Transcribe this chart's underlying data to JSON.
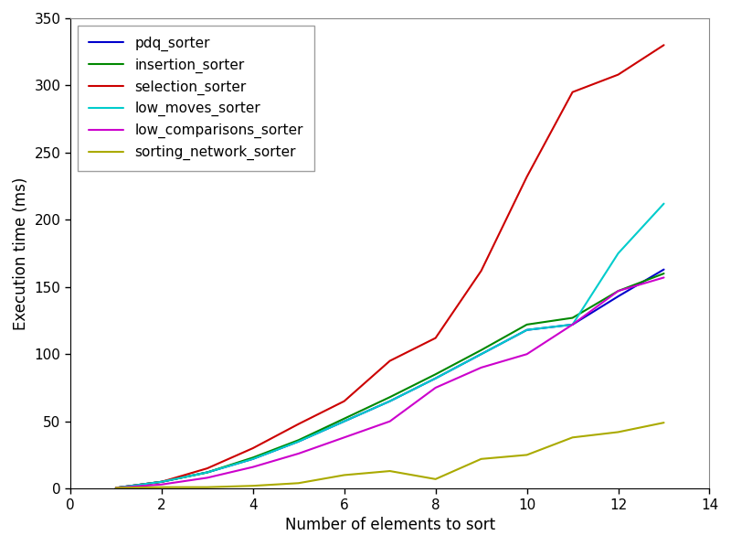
{
  "title": "",
  "xlabel": "Number of elements to sort",
  "ylabel": "Execution time (ms)",
  "xlim": [
    0,
    14
  ],
  "ylim": [
    0,
    350
  ],
  "xticks": [
    0,
    2,
    4,
    6,
    8,
    10,
    12,
    14
  ],
  "yticks": [
    0,
    50,
    100,
    150,
    200,
    250,
    300,
    350
  ],
  "series": [
    {
      "label": "pdq_sorter",
      "color": "#0000cc",
      "x": [
        1,
        2,
        3,
        4,
        5,
        6,
        7,
        8,
        9,
        10,
        11,
        12,
        13
      ],
      "y": [
        0.5,
        5,
        12,
        22,
        35,
        50,
        65,
        82,
        100,
        118,
        122,
        143,
        163
      ]
    },
    {
      "label": "insertion_sorter",
      "color": "#008800",
      "x": [
        1,
        2,
        3,
        4,
        5,
        6,
        7,
        8,
        9,
        10,
        11,
        12,
        13
      ],
      "y": [
        0.5,
        5,
        12,
        23,
        36,
        52,
        68,
        85,
        103,
        122,
        127,
        147,
        160
      ]
    },
    {
      "label": "selection_sorter",
      "color": "#cc0000",
      "x": [
        1,
        2,
        3,
        4,
        5,
        6,
        7,
        8,
        9,
        10,
        11,
        12,
        13
      ],
      "y": [
        0.5,
        5,
        15,
        30,
        48,
        65,
        95,
        112,
        162,
        232,
        295,
        308,
        330
      ]
    },
    {
      "label": "low_moves_sorter",
      "color": "#00cccc",
      "x": [
        1,
        2,
        3,
        4,
        5,
        6,
        7,
        8,
        9,
        10,
        11,
        12,
        13
      ],
      "y": [
        0.5,
        5,
        12,
        22,
        35,
        50,
        65,
        82,
        100,
        118,
        122,
        175,
        212
      ]
    },
    {
      "label": "low_comparisons_sorter",
      "color": "#cc00cc",
      "x": [
        1,
        2,
        3,
        4,
        5,
        6,
        7,
        8,
        9,
        10,
        11,
        12,
        13
      ],
      "y": [
        0.5,
        3,
        8,
        16,
        26,
        38,
        50,
        75,
        90,
        100,
        122,
        147,
        157
      ]
    },
    {
      "label": "sorting_network_sorter",
      "color": "#aaaa00",
      "x": [
        1,
        2,
        3,
        4,
        5,
        6,
        7,
        8,
        9,
        10,
        11,
        12,
        13
      ],
      "y": [
        0.5,
        1,
        1,
        2,
        4,
        10,
        13,
        7,
        22,
        25,
        38,
        42,
        49
      ]
    }
  ],
  "legend_loc": "upper left",
  "background_color": "#ffffff"
}
